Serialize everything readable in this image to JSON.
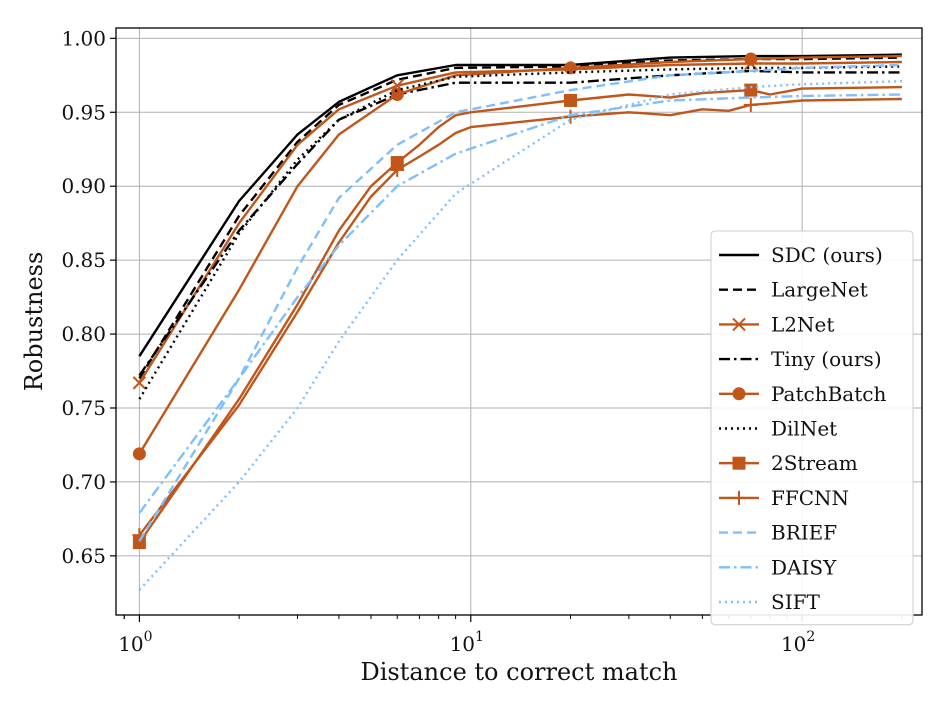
{
  "chart_data": {
    "type": "line",
    "title": "",
    "xlabel": "Distance to correct match",
    "ylabel": "Robustness",
    "xscale": "log",
    "xlim": [
      0.85,
      230
    ],
    "ylim": [
      0.61,
      1.007
    ],
    "grid": true,
    "legend_position": "lower-right",
    "x_ticks": [
      {
        "value": 1,
        "base": "10",
        "exp": "0"
      },
      {
        "value": 10,
        "base": "10",
        "exp": "1"
      },
      {
        "value": 100,
        "base": "10",
        "exp": "2"
      }
    ],
    "y_ticks": [
      {
        "value": 0.65,
        "label": "0.65"
      },
      {
        "value": 0.7,
        "label": "0.70"
      },
      {
        "value": 0.75,
        "label": "0.75"
      },
      {
        "value": 0.8,
        "label": "0.80"
      },
      {
        "value": 0.85,
        "label": "0.85"
      },
      {
        "value": 0.9,
        "label": "0.90"
      },
      {
        "value": 0.95,
        "label": "0.95"
      },
      {
        "value": 1.0,
        "label": "1.00"
      }
    ],
    "colors": {
      "black": "#000000",
      "orange": "#c0561a",
      "blue": "#7dbfff",
      "grid": "#b0b0b0",
      "axis": "#000000"
    },
    "series": [
      {
        "name": "SDC (ours)",
        "color": "black",
        "dash": "solid",
        "marker": "none",
        "x": [
          1,
          2,
          3,
          4,
          6,
          9,
          20,
          40,
          70,
          100,
          200
        ],
        "y": [
          0.785,
          0.89,
          0.935,
          0.957,
          0.975,
          0.982,
          0.982,
          0.987,
          0.988,
          0.988,
          0.989
        ]
      },
      {
        "name": "LargeNet",
        "color": "black",
        "dash": "dashed",
        "marker": "none",
        "x": [
          1,
          2,
          3,
          4,
          6,
          9,
          20,
          40,
          70,
          100,
          200
        ],
        "y": [
          0.77,
          0.88,
          0.93,
          0.955,
          0.972,
          0.98,
          0.981,
          0.985,
          0.986,
          0.986,
          0.987
        ]
      },
      {
        "name": "L2Net",
        "color": "orange",
        "dash": "solid",
        "marker": "x",
        "marker_x": [
          1,
          6,
          70
        ],
        "x": [
          1,
          2,
          3,
          4,
          6,
          9,
          20,
          40,
          70,
          100,
          200
        ],
        "y": [
          0.767,
          0.875,
          0.928,
          0.952,
          0.968,
          0.977,
          0.979,
          0.982,
          0.983,
          0.983,
          0.984
        ]
      },
      {
        "name": "Tiny (ours)",
        "color": "black",
        "dash": "dashdot",
        "marker": "none",
        "x": [
          1,
          2,
          3,
          4,
          6,
          9,
          20,
          40,
          70,
          100,
          200
        ],
        "y": [
          0.772,
          0.87,
          0.915,
          0.945,
          0.962,
          0.97,
          0.97,
          0.975,
          0.978,
          0.977,
          0.977
        ]
      },
      {
        "name": "PatchBatch",
        "color": "orange",
        "dash": "solid",
        "marker": "o",
        "marker_x": [
          1,
          6,
          20,
          70
        ],
        "x": [
          1,
          2,
          3,
          4,
          6,
          9,
          20,
          40,
          70,
          100,
          200
        ],
        "y": [
          0.719,
          0.83,
          0.9,
          0.935,
          0.962,
          0.975,
          0.98,
          0.984,
          0.986,
          0.987,
          0.988
        ]
      },
      {
        "name": "DilNet",
        "color": "black",
        "dash": "dotted",
        "marker": "none",
        "x": [
          1,
          2,
          3,
          4,
          6,
          9,
          20,
          40,
          70,
          100,
          200
        ],
        "y": [
          0.756,
          0.868,
          0.918,
          0.945,
          0.965,
          0.974,
          0.977,
          0.979,
          0.98,
          0.98,
          0.981
        ]
      },
      {
        "name": "2Stream",
        "color": "orange",
        "dash": "solid",
        "marker": "s",
        "marker_x": [
          1,
          6,
          20,
          70
        ],
        "x": [
          1,
          2,
          3,
          4,
          5,
          6,
          7,
          8,
          9,
          10,
          20,
          30,
          40,
          50,
          70,
          80,
          100,
          200
        ],
        "y": [
          0.659,
          0.756,
          0.82,
          0.87,
          0.9,
          0.916,
          0.928,
          0.94,
          0.948,
          0.95,
          0.958,
          0.962,
          0.96,
          0.963,
          0.965,
          0.962,
          0.966,
          0.967
        ]
      },
      {
        "name": "FFCNN",
        "color": "orange",
        "dash": "solid",
        "marker": "+",
        "marker_x": [
          1,
          6,
          20,
          70
        ],
        "x": [
          1,
          2,
          3,
          4,
          5,
          6,
          7,
          8,
          9,
          10,
          20,
          30,
          40,
          50,
          60,
          70,
          80,
          100,
          200
        ],
        "y": [
          0.664,
          0.752,
          0.815,
          0.862,
          0.893,
          0.911,
          0.92,
          0.928,
          0.936,
          0.94,
          0.947,
          0.95,
          0.948,
          0.952,
          0.951,
          0.955,
          0.956,
          0.958,
          0.959
        ]
      },
      {
        "name": "BRIEF",
        "color": "blue",
        "dash": "dashed",
        "marker": "none",
        "x": [
          1,
          2,
          3,
          4,
          6,
          9,
          20,
          40,
          70,
          100,
          200
        ],
        "y": [
          0.66,
          0.77,
          0.845,
          0.892,
          0.928,
          0.95,
          0.965,
          0.975,
          0.978,
          0.98,
          0.982
        ]
      },
      {
        "name": "DAISY",
        "color": "blue",
        "dash": "dashdot",
        "marker": "none",
        "x": [
          1,
          2,
          3,
          4,
          6,
          9,
          20,
          40,
          70,
          100,
          200
        ],
        "y": [
          0.679,
          0.77,
          0.825,
          0.86,
          0.9,
          0.922,
          0.948,
          0.958,
          0.96,
          0.961,
          0.962
        ]
      },
      {
        "name": "SIFT",
        "color": "blue",
        "dash": "dotted",
        "marker": "none",
        "x": [
          1,
          2,
          3,
          4,
          6,
          9,
          20,
          40,
          70,
          100,
          200
        ],
        "y": [
          0.627,
          0.7,
          0.75,
          0.795,
          0.85,
          0.895,
          0.945,
          0.962,
          0.967,
          0.969,
          0.971
        ]
      }
    ]
  }
}
